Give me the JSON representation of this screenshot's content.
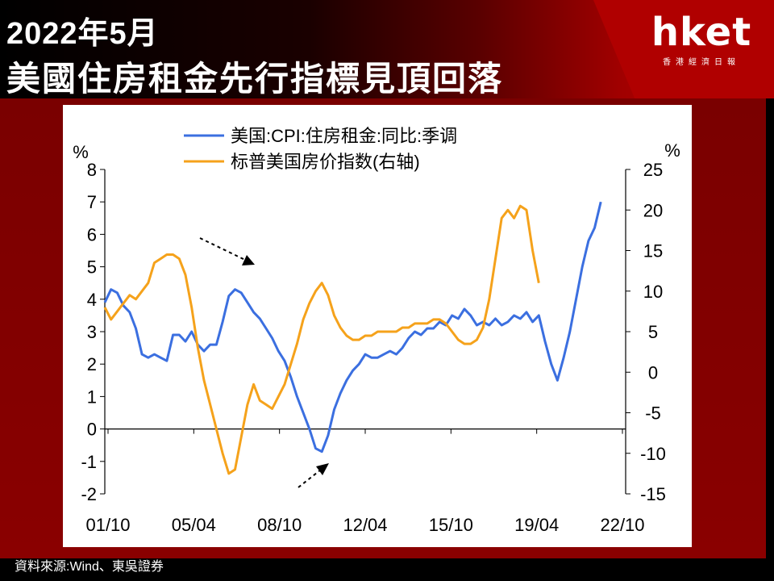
{
  "header": {
    "title_line1": "2022年5月",
    "title_line2": "美國住房租金先行指標見頂回落"
  },
  "logo": {
    "brand": "hket",
    "subtitle": "香港經濟日報"
  },
  "source": "資料來源:Wind、東吳證券",
  "colors": {
    "cpi_line": "#3b6fe0",
    "hpi_line": "#f5a21b",
    "header_red": "#b00000",
    "panel_red": "#8a0000"
  },
  "chart_data": {
    "type": "line",
    "legend": [
      "美国:CPI:住房租金:同比:季调",
      "标普美国房价指数(右轴)"
    ],
    "legend_position": "top",
    "left_axis": {
      "unit": "%",
      "ylim": [
        -2,
        8
      ],
      "ticks": [
        "8",
        "7",
        "6",
        "5",
        "4",
        "3",
        "2",
        "1",
        "0",
        "-1",
        "-2"
      ]
    },
    "right_axis": {
      "unit": "%",
      "ylim": [
        -15,
        25
      ],
      "ticks": [
        "25",
        "20",
        "15",
        "10",
        "5",
        "0",
        "-5",
        "-10",
        "-15"
      ]
    },
    "x_tick_labels": [
      "01/10",
      "05/04",
      "08/10",
      "12/04",
      "15/10",
      "19/04",
      "22/10"
    ],
    "xlim": [
      2001.75,
      2022.75
    ],
    "grid": false,
    "series": [
      {
        "name": "美国:CPI:住房租金:同比:季调",
        "axis": "left",
        "points": [
          [
            2001.75,
            3.9
          ],
          [
            2002.0,
            4.3
          ],
          [
            2002.25,
            4.2
          ],
          [
            2002.5,
            3.8
          ],
          [
            2002.75,
            3.6
          ],
          [
            2003.0,
            3.1
          ],
          [
            2003.25,
            2.3
          ],
          [
            2003.5,
            2.2
          ],
          [
            2003.75,
            2.3
          ],
          [
            2004.0,
            2.2
          ],
          [
            2004.25,
            2.1
          ],
          [
            2004.5,
            2.9
          ],
          [
            2004.75,
            2.9
          ],
          [
            2005.0,
            2.7
          ],
          [
            2005.25,
            3.0
          ],
          [
            2005.5,
            2.6
          ],
          [
            2005.75,
            2.4
          ],
          [
            2006.0,
            2.6
          ],
          [
            2006.25,
            2.6
          ],
          [
            2006.5,
            3.3
          ],
          [
            2006.75,
            4.1
          ],
          [
            2007.0,
            4.3
          ],
          [
            2007.25,
            4.2
          ],
          [
            2007.5,
            3.9
          ],
          [
            2007.75,
            3.6
          ],
          [
            2008.0,
            3.4
          ],
          [
            2008.25,
            3.1
          ],
          [
            2008.5,
            2.8
          ],
          [
            2008.75,
            2.4
          ],
          [
            2009.0,
            2.1
          ],
          [
            2009.25,
            1.6
          ],
          [
            2009.5,
            1.0
          ],
          [
            2009.75,
            0.5
          ],
          [
            2010.0,
            0.0
          ],
          [
            2010.25,
            -0.6
          ],
          [
            2010.5,
            -0.7
          ],
          [
            2010.75,
            -0.2
          ],
          [
            2011.0,
            0.6
          ],
          [
            2011.25,
            1.1
          ],
          [
            2011.5,
            1.5
          ],
          [
            2011.75,
            1.8
          ],
          [
            2012.0,
            2.0
          ],
          [
            2012.25,
            2.3
          ],
          [
            2012.5,
            2.2
          ],
          [
            2012.75,
            2.2
          ],
          [
            2013.0,
            2.3
          ],
          [
            2013.25,
            2.4
          ],
          [
            2013.5,
            2.3
          ],
          [
            2013.75,
            2.5
          ],
          [
            2014.0,
            2.8
          ],
          [
            2014.25,
            3.0
          ],
          [
            2014.5,
            2.9
          ],
          [
            2014.75,
            3.1
          ],
          [
            2015.0,
            3.1
          ],
          [
            2015.25,
            3.3
          ],
          [
            2015.5,
            3.2
          ],
          [
            2015.75,
            3.5
          ],
          [
            2016.0,
            3.4
          ],
          [
            2016.25,
            3.7
          ],
          [
            2016.5,
            3.5
          ],
          [
            2016.75,
            3.2
          ],
          [
            2017.0,
            3.3
          ],
          [
            2017.25,
            3.2
          ],
          [
            2017.5,
            3.4
          ],
          [
            2017.75,
            3.2
          ],
          [
            2018.0,
            3.3
          ],
          [
            2018.25,
            3.5
          ],
          [
            2018.5,
            3.4
          ],
          [
            2018.75,
            3.6
          ],
          [
            2019.0,
            3.3
          ],
          [
            2019.25,
            3.5
          ],
          [
            2019.5,
            2.7
          ],
          [
            2019.75,
            2.0
          ],
          [
            2020.0,
            1.5
          ],
          [
            2020.25,
            2.2
          ],
          [
            2020.5,
            3.0
          ],
          [
            2020.75,
            4.0
          ],
          [
            2021.0,
            5.0
          ],
          [
            2021.25,
            5.8
          ],
          [
            2021.5,
            6.2
          ],
          [
            2021.75,
            7.0
          ]
        ]
      },
      {
        "name": "标普美国房价指数(右轴)",
        "axis": "right",
        "points": [
          [
            2001.75,
            8.0
          ],
          [
            2002.0,
            6.5
          ],
          [
            2002.25,
            7.5
          ],
          [
            2002.5,
            8.5
          ],
          [
            2002.75,
            9.5
          ],
          [
            2003.0,
            9.0
          ],
          [
            2003.25,
            10.0
          ],
          [
            2003.5,
            11.0
          ],
          [
            2003.75,
            13.5
          ],
          [
            2004.0,
            14.0
          ],
          [
            2004.25,
            14.5
          ],
          [
            2004.5,
            14.5
          ],
          [
            2004.75,
            14.0
          ],
          [
            2005.0,
            12.0
          ],
          [
            2005.25,
            8.0
          ],
          [
            2005.5,
            3.0
          ],
          [
            2005.75,
            -1.0
          ],
          [
            2006.0,
            -4.0
          ],
          [
            2006.25,
            -7.0
          ],
          [
            2006.5,
            -10.0
          ],
          [
            2006.75,
            -12.5
          ],
          [
            2007.0,
            -12.0
          ],
          [
            2007.25,
            -8.0
          ],
          [
            2007.5,
            -4.0
          ],
          [
            2007.75,
            -1.5
          ],
          [
            2008.0,
            -3.5
          ],
          [
            2008.25,
            -4.0
          ],
          [
            2008.5,
            -4.5
          ],
          [
            2008.75,
            -3.0
          ],
          [
            2009.0,
            -1.5
          ],
          [
            2009.25,
            1.0
          ],
          [
            2009.5,
            3.5
          ],
          [
            2009.75,
            6.5
          ],
          [
            2010.0,
            8.5
          ],
          [
            2010.25,
            10.0
          ],
          [
            2010.5,
            11.0
          ],
          [
            2010.75,
            9.5
          ],
          [
            2011.0,
            7.0
          ],
          [
            2011.25,
            5.5
          ],
          [
            2011.5,
            4.5
          ],
          [
            2011.75,
            4.0
          ],
          [
            2012.0,
            4.0
          ],
          [
            2012.25,
            4.5
          ],
          [
            2012.5,
            4.5
          ],
          [
            2012.75,
            5.0
          ],
          [
            2013.0,
            5.0
          ],
          [
            2013.25,
            5.0
          ],
          [
            2013.5,
            5.0
          ],
          [
            2013.75,
            5.5
          ],
          [
            2014.0,
            5.5
          ],
          [
            2014.25,
            6.0
          ],
          [
            2014.5,
            6.0
          ],
          [
            2014.75,
            6.0
          ],
          [
            2015.0,
            6.5
          ],
          [
            2015.25,
            6.5
          ],
          [
            2015.5,
            6.0
          ],
          [
            2015.75,
            5.0
          ],
          [
            2016.0,
            4.0
          ],
          [
            2016.25,
            3.5
          ],
          [
            2016.5,
            3.5
          ],
          [
            2016.75,
            4.0
          ],
          [
            2017.0,
            5.5
          ],
          [
            2017.25,
            9.0
          ],
          [
            2017.5,
            14.0
          ],
          [
            2017.75,
            19.0
          ],
          [
            2018.0,
            20.0
          ],
          [
            2018.25,
            19.0
          ],
          [
            2018.5,
            20.5
          ],
          [
            2018.75,
            20.0
          ],
          [
            2019.0,
            15.0
          ],
          [
            2019.25,
            11.0
          ]
        ]
      }
    ]
  }
}
